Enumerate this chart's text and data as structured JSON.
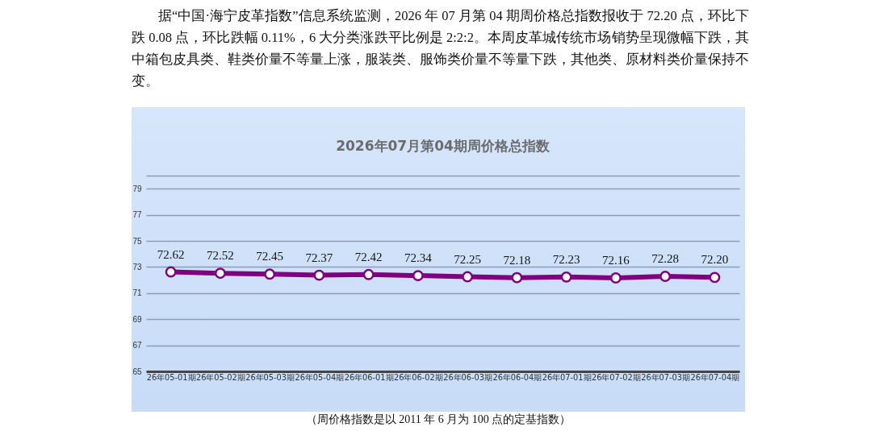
{
  "chart_data": {
    "type": "line",
    "title": "2026年07月第04期周价格总指数",
    "categories": [
      "26年05-01期",
      "26年05-02期",
      "26年05-03期",
      "26年05-04期",
      "26年06-01期",
      "26年06-02期",
      "26年06-03期",
      "26年06-04期",
      "26年07-01期",
      "26年07-02期",
      "26年07-03期",
      "26年07-04期"
    ],
    "series": [
      {
        "color": "#800080",
        "values": [
          72.62,
          72.52,
          72.45,
          72.37,
          72.42,
          72.34,
          72.25,
          72.18,
          72.23,
          72.16,
          72.28,
          72.2
        ]
      }
    ],
    "ylim": [
      65,
      80
    ],
    "yticks": [
      65,
      67,
      69,
      71,
      73,
      75,
      77,
      79,
      {
        "value": 80,
        "label": null
      }
    ],
    "grid": "y",
    "marker": "circle",
    "value_labels": [
      "72.62",
      "72.52",
      "72.45",
      "72.37",
      "72.42",
      "72.34",
      "72.25",
      "72.18",
      "72.23",
      "72.16",
      "72.28",
      "72.20"
    ],
    "annotations": [
      "据“中国·海宁皮革指数”信息系统监测，2026 年 07 月第 04 期周价格总指数报收于 72.20 点，环比下跌 0.08 点，环比跌幅 0.11%，6 大分类涨跌平比例是 2:2:2。本周皮革城传统市场销势呈现微幅下跌，其中箱包皮具类、鞋类价量不等量上涨，服装类、服饰类价量不等量下跌，其他类、原材料类价量保持不变。",
      "（周价格指数是以 2011 年 6 月为 100 点的定基指数）"
    ]
  }
}
